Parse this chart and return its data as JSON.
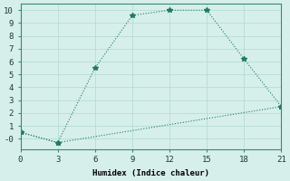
{
  "line1_x": [
    0,
    3,
    6,
    9,
    12,
    15,
    18,
    21
  ],
  "line1_y": [
    0.5,
    -0.3,
    5.5,
    9.6,
    10.0,
    10.0,
    6.2,
    2.5
  ],
  "line2_x": [
    0,
    3,
    21
  ],
  "line2_y": [
    0.5,
    -0.3,
    2.5
  ],
  "line_color": "#1e7a62",
  "marker": "*",
  "marker_size": 4,
  "bg_color": "#d6efea",
  "grid_color": "#b8ddd6",
  "xlabel": "Humidex (Indice chaleur)",
  "xlim": [
    0,
    21
  ],
  "ylim": [
    -0.8,
    10.5
  ],
  "xticks": [
    0,
    3,
    6,
    9,
    12,
    15,
    18,
    21
  ],
  "yticks": [
    0,
    1,
    2,
    3,
    4,
    5,
    6,
    7,
    8,
    9,
    10
  ],
  "ytick_labels": [
    "-0",
    "1",
    "2",
    "3",
    "4",
    "5",
    "6",
    "7",
    "8",
    "9",
    "10"
  ],
  "font_size": 6.5
}
